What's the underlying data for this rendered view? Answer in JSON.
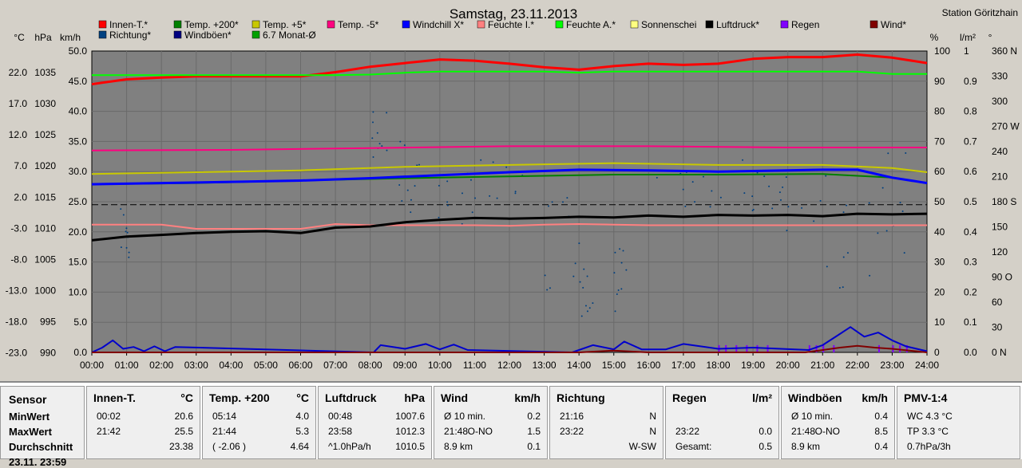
{
  "title": "Samstag, 23.11.2013",
  "station": "Station Göritzhain",
  "accent_station": "#ff0000",
  "left_axis_units": [
    "°C",
    "hPa",
    "km/h"
  ],
  "right_axis_units": [
    "%",
    "l/m²",
    "°"
  ],
  "legend": [
    {
      "label": "Innen-T.*",
      "color": "#ff0000"
    },
    {
      "label": "Temp. +200*",
      "color": "#008000"
    },
    {
      "label": "Temp. +5*",
      "color": "#c8c800"
    },
    {
      "label": "Temp. -5*",
      "color": "#ff0080"
    },
    {
      "label": "Windchill X*",
      "color": "#0000ff"
    },
    {
      "label": "Feuchte I.*",
      "color": "#ff8080"
    },
    {
      "label": "Feuchte A.*",
      "color": "#00ff00"
    },
    {
      "label": "Sonnenschei",
      "color": "#ffff80"
    },
    {
      "label": "Luftdruck*",
      "color": "#000000"
    },
    {
      "label": "Regen",
      "color": "#8000ff"
    },
    {
      "label": "Wind*",
      "color": "#800000"
    },
    {
      "label": "Richtung*",
      "color": "#004080"
    },
    {
      "label": "Windböen*",
      "color": "#000080"
    },
    {
      "label": "6.7 Monat-Ø",
      "color": "#00a000"
    }
  ],
  "chart_data": {
    "type": "line",
    "x_ticks": [
      "00:00",
      "01:00",
      "02:00",
      "03:00",
      "04:00",
      "05:00",
      "06:00",
      "07:00",
      "08:00",
      "09:00",
      "10:00",
      "11:00",
      "12:00",
      "13:00",
      "14:00",
      "15:00",
      "16:00",
      "17:00",
      "18:00",
      "19:00",
      "20:00",
      "21:00",
      "22:00",
      "23:00",
      "24:00"
    ],
    "y_ticks_celsius": [
      "22.0",
      "17.0",
      "12.0",
      "7.0",
      "2.0",
      "-3.0",
      "-8.0",
      "-13.0",
      "-18.0",
      "-23.0"
    ],
    "y_ticks_hpa": [
      "1035",
      "1030",
      "1025",
      "1020",
      "1015",
      "1010",
      "1005",
      "1000",
      "995",
      "990"
    ],
    "y_ticks_kmh": [
      "50.0",
      "45.0",
      "40.0",
      "35.0",
      "30.0",
      "25.0",
      "20.0",
      "15.0",
      "10.0",
      "5.0",
      "0.0"
    ],
    "y_ticks_percent": [
      "100",
      "90",
      "80",
      "70",
      "60",
      "50",
      "40",
      "30",
      "20",
      "10",
      "0"
    ],
    "y_ticks_rain": [
      "1",
      "0.9",
      "0.8",
      "0.7",
      "0.6",
      "0.5",
      "0.4",
      "0.3",
      "0.2",
      "0.1",
      "0.0"
    ],
    "y_ticks_degree": [
      "360 N",
      "330",
      "300",
      "270 W",
      "240",
      "210",
      "180 S",
      "150",
      "120",
      "90 O",
      "60",
      "30",
      "0  N"
    ],
    "ylim_kmh": [
      0,
      50
    ],
    "grid": true,
    "monthly_avg_kmh": 24.5,
    "series": [
      {
        "name": "Innen-T.*",
        "color": "#ff0000",
        "width": 3,
        "hours": [
          0,
          1,
          2,
          3,
          4,
          5,
          6,
          7,
          8,
          9,
          10,
          11,
          12,
          13,
          14,
          15,
          16,
          17,
          18,
          19,
          20,
          21,
          22,
          23,
          24
        ],
        "kmh": [
          44.5,
          45.3,
          45.6,
          45.8,
          45.8,
          45.8,
          45.8,
          46.5,
          47.4,
          48.0,
          48.6,
          48.4,
          47.9,
          47.3,
          46.9,
          47.5,
          47.9,
          47.7,
          47.9,
          48.7,
          49.0,
          49.0,
          49.4,
          48.9,
          48.0
        ]
      },
      {
        "name": "Feuchte A.*",
        "color": "#00ff00",
        "width": 2,
        "hours": [
          0,
          2,
          4,
          6,
          7,
          8,
          9,
          10,
          11,
          12,
          13,
          14,
          15,
          16,
          17,
          18,
          19,
          20,
          21,
          22,
          23,
          24
        ],
        "kmh": [
          46.0,
          46.0,
          46.0,
          46.0,
          46.0,
          46.1,
          46.4,
          46.6,
          46.6,
          46.6,
          46.6,
          46.4,
          46.6,
          46.6,
          46.6,
          46.6,
          46.6,
          46.6,
          46.6,
          46.6,
          46.2,
          46.2
        ]
      },
      {
        "name": "Temp. -5*",
        "color": "#ff0080",
        "width": 2,
        "hours": [
          0,
          4,
          8,
          12,
          16,
          20,
          24
        ],
        "kmh": [
          33.5,
          33.6,
          33.9,
          34.2,
          34.2,
          34.0,
          34.0
        ]
      },
      {
        "name": "Temp. +5*",
        "color": "#c8c800",
        "width": 2,
        "hours": [
          0,
          3,
          6,
          9,
          12,
          15,
          18,
          21,
          23,
          24
        ],
        "kmh": [
          29.6,
          29.9,
          30.2,
          30.8,
          31.1,
          31.4,
          31.1,
          31.1,
          30.6,
          29.9
        ]
      },
      {
        "name": "Temp. +200*",
        "color": "#008000",
        "width": 2,
        "hours": [
          0,
          3,
          6,
          9,
          12,
          15,
          18,
          21,
          23,
          24
        ],
        "kmh": [
          27.9,
          28.1,
          28.5,
          28.9,
          29.2,
          29.5,
          29.5,
          29.6,
          29.0,
          28.1
        ]
      },
      {
        "name": "Windchill X*",
        "color": "#0000ff",
        "width": 3,
        "hours": [
          0,
          2,
          4,
          6,
          8,
          10,
          12,
          14,
          16,
          18,
          20,
          21,
          22,
          23,
          24
        ],
        "kmh": [
          27.9,
          28.1,
          28.3,
          28.5,
          28.9,
          29.4,
          29.9,
          30.3,
          30.2,
          30.0,
          30.2,
          30.3,
          30.3,
          29.0,
          28.1
        ]
      },
      {
        "name": "Feuchte I.*",
        "color": "#ff8080",
        "width": 2,
        "hours": [
          0,
          1,
          2,
          3,
          4,
          5,
          6,
          7,
          8,
          9,
          10,
          11,
          12,
          13,
          14,
          15,
          16,
          17,
          18,
          19,
          20,
          21,
          22,
          23,
          24
        ],
        "kmh": [
          21.2,
          21.2,
          21.2,
          20.5,
          20.5,
          20.5,
          20.5,
          21.3,
          21.1,
          21.1,
          21.1,
          21.1,
          21.0,
          21.2,
          21.3,
          21.2,
          21.1,
          21.1,
          21.1,
          21.1,
          21.1,
          21.1,
          21.1,
          21.1,
          21.1
        ]
      },
      {
        "name": "Luftdruck*",
        "color": "#000000",
        "width": 3,
        "hours": [
          0,
          1,
          2,
          3,
          4,
          5,
          6,
          7,
          8,
          9,
          10,
          11,
          12,
          13,
          14,
          15,
          16,
          17,
          18,
          19,
          20,
          21,
          22,
          23,
          24
        ],
        "kmh": [
          18.6,
          19.2,
          19.5,
          19.8,
          20.0,
          20.1,
          19.8,
          20.7,
          20.9,
          21.6,
          22.0,
          22.3,
          22.2,
          22.3,
          22.5,
          22.4,
          22.7,
          22.5,
          22.8,
          22.7,
          22.8,
          22.6,
          23.0,
          22.9,
          23.0
        ]
      },
      {
        "name": "Windböen*",
        "color": "#0000cc",
        "width": 2,
        "hours": [
          0,
          0.3,
          0.6,
          0.9,
          1.2,
          1.5,
          1.8,
          2.1,
          2.4,
          8.1,
          8.3,
          9.0,
          9.6,
          10.0,
          10.4,
          10.8,
          13.8,
          14.4,
          15.0,
          15.3,
          15.8,
          16.5,
          17.0,
          18.0,
          19.0,
          20.6,
          21.0,
          21.4,
          21.8,
          22.2,
          22.6,
          23.0,
          23.4,
          24.0
        ],
        "kmh": [
          0,
          0.8,
          2.0,
          0.6,
          0.9,
          0.2,
          1.0,
          0.2,
          0.9,
          0,
          1.2,
          0.6,
          1.4,
          0.5,
          1.3,
          0.4,
          0,
          1.2,
          0.5,
          1.8,
          0.5,
          0.5,
          1.4,
          0.6,
          0.8,
          0.4,
          1.2,
          2.7,
          4.2,
          2.6,
          3.3,
          2.0,
          1.0,
          0.2
        ]
      },
      {
        "name": "Wind*",
        "color": "#800000",
        "width": 2,
        "hours": [
          0,
          14,
          15,
          16,
          20.5,
          21.5,
          22,
          22.5,
          23,
          24
        ],
        "kmh": [
          0,
          0,
          0.3,
          0,
          0,
          0.8,
          1.1,
          0.8,
          0.6,
          0
        ]
      }
    ]
  },
  "summary": {
    "sensor_col": {
      "header": "Sensor",
      "min": "MinWert",
      "max": "MaxWert",
      "avg": "Durchschnitt",
      "footer": "23.11. 23:59"
    },
    "panels": [
      {
        "title": "Innen-T.",
        "unit": "°C",
        "rows": [
          [
            "00:02",
            "",
            "20.6"
          ],
          [
            "21:42",
            "",
            "25.5"
          ],
          [
            "",
            "",
            "23.38"
          ]
        ]
      },
      {
        "title": "Temp. +200",
        "unit": "°C",
        "rows": [
          [
            "05:14",
            "",
            "4.0"
          ],
          [
            "21:44",
            "",
            "5.3"
          ],
          [
            "( -2.06 )",
            "",
            "4.64"
          ]
        ]
      },
      {
        "title": "Luftdruck",
        "unit": "hPa",
        "rows": [
          [
            "00:48",
            "",
            "1007.6"
          ],
          [
            "23:58",
            "",
            "1012.3"
          ],
          [
            "^1.0hPa/h",
            "",
            "1010.5"
          ]
        ]
      },
      {
        "title": "Wind",
        "unit": "km/h",
        "rows": [
          [
            "Ø 10 min.",
            "",
            "0.2"
          ],
          [
            "21:48",
            "O-NO",
            "1.5"
          ],
          [
            "8.9 km",
            "",
            "0.1"
          ]
        ]
      },
      {
        "title": "Richtung",
        "unit": "",
        "rows": [
          [
            "21:16",
            "",
            "N"
          ],
          [
            "23:22",
            "",
            "N"
          ],
          [
            "",
            "",
            "W-SW"
          ]
        ]
      },
      {
        "title": "Regen",
        "unit": "l/m²",
        "rows": [
          [
            "",
            "",
            ""
          ],
          [
            "23:22",
            "",
            "0.0"
          ],
          [
            "Gesamt:",
            "",
            "0.5"
          ]
        ]
      },
      {
        "title": "Windböen",
        "unit": "km/h",
        "rows": [
          [
            "Ø 10 min.",
            "",
            "0.4"
          ],
          [
            "21:48",
            "O-NO",
            "8.5"
          ],
          [
            "8.9 km",
            "",
            "0.4"
          ]
        ]
      },
      {
        "title": "PMV-1:4",
        "unit": "",
        "rows": [
          [
            "WC 4.3 °C",
            "",
            ""
          ],
          [
            "TP 3.3 °C",
            "",
            ""
          ],
          [
            "0.7hPa/3h",
            "",
            ""
          ]
        ]
      }
    ]
  }
}
